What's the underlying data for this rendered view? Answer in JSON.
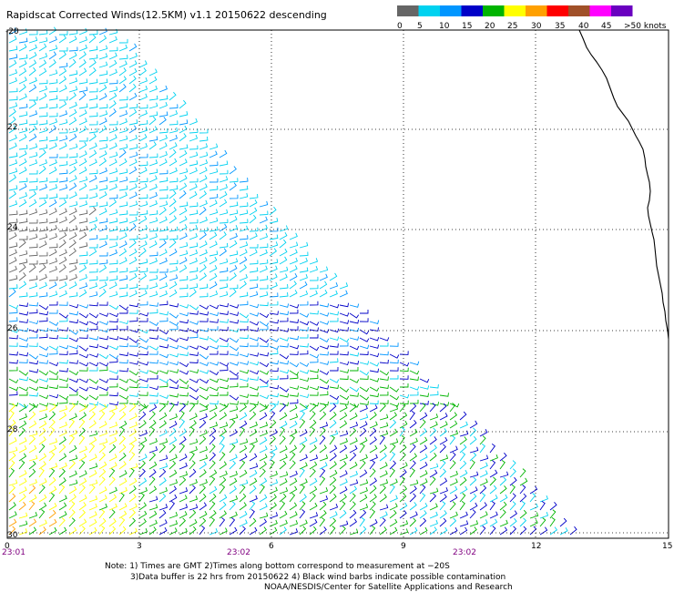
{
  "title": "Rapidscat Corrected Winds(12.5KM) v1.1 20150622 descending",
  "legend": {
    "units_label": ">50 knots",
    "tick_labels": [
      "0",
      "5",
      "10",
      "15",
      "20",
      "25",
      "30",
      "35",
      "40",
      "45"
    ],
    "colors": [
      "#666666",
      "#00d2f0",
      "#0096ff",
      "#0000c8",
      "#00b400",
      "#ffff00",
      "#ffa000",
      "#ff0000",
      "#a05028",
      "#ff00ff",
      "#6a00c0"
    ]
  },
  "colors": {
    "time_text": "#800080",
    "grid": "#000000",
    "coastline": "#000000"
  },
  "map": {
    "lat_labels": [
      "-20",
      "22",
      "24",
      "26",
      "28",
      "30"
    ],
    "lon_labels": [
      "0",
      "3",
      "6",
      "9",
      "12",
      "15"
    ],
    "time_labels": [
      "23:01",
      "23:02",
      "23:02"
    ]
  },
  "note": {
    "line1": "Note: 1) Times are GMT 2)Times along bottom correspond to measurement at −20S",
    "line2": "3)Data buffer is 22 hrs from 20150622 4) Black wind barbs indicate possible contamination",
    "line3": "NOAA/NESDIS/Center for Satellite Applications and Research"
  }
}
